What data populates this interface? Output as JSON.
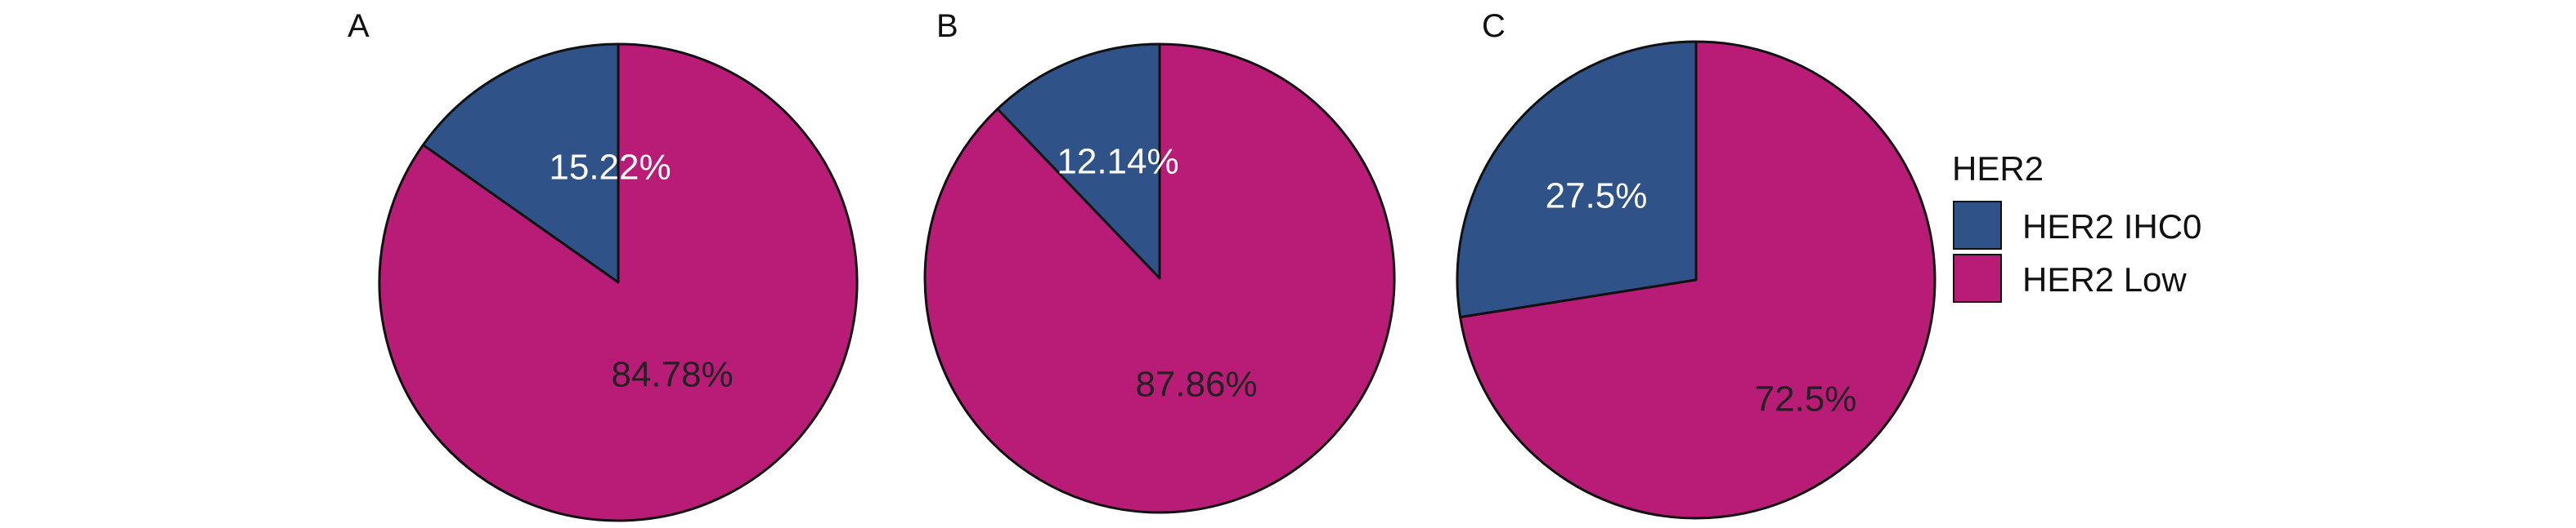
{
  "chart_data": [
    {
      "type": "pie",
      "panel_label": "A",
      "categories": [
        "HER2 IHC0",
        "HER2 Low"
      ],
      "values": [
        15.22,
        84.78
      ],
      "slice_labels": [
        "15.22%",
        "84.78%"
      ],
      "colors": [
        "#2f5289",
        "#b81c76"
      ]
    },
    {
      "type": "pie",
      "panel_label": "B",
      "categories": [
        "HER2 IHC0",
        "HER2 Low"
      ],
      "values": [
        12.14,
        87.86
      ],
      "slice_labels": [
        "12.14%",
        "87.86%"
      ],
      "colors": [
        "#2f5289",
        "#b81c76"
      ]
    },
    {
      "type": "pie",
      "panel_label": "C",
      "categories": [
        "HER2 IHC0",
        "HER2 Low"
      ],
      "values": [
        27.5,
        72.5
      ],
      "slice_labels": [
        "27.5%",
        "72.5%"
      ],
      "colors": [
        "#2f5289",
        "#b81c76"
      ]
    }
  ],
  "legend": {
    "title": "HER2",
    "items": [
      {
        "label": "HER2 IHC0",
        "color": "#2f5289"
      },
      {
        "label": "HER2 Low",
        "color": "#b81c76"
      }
    ]
  },
  "label_colors": {
    "inside_dark": "#ffffff",
    "inside_light": "#222222"
  }
}
